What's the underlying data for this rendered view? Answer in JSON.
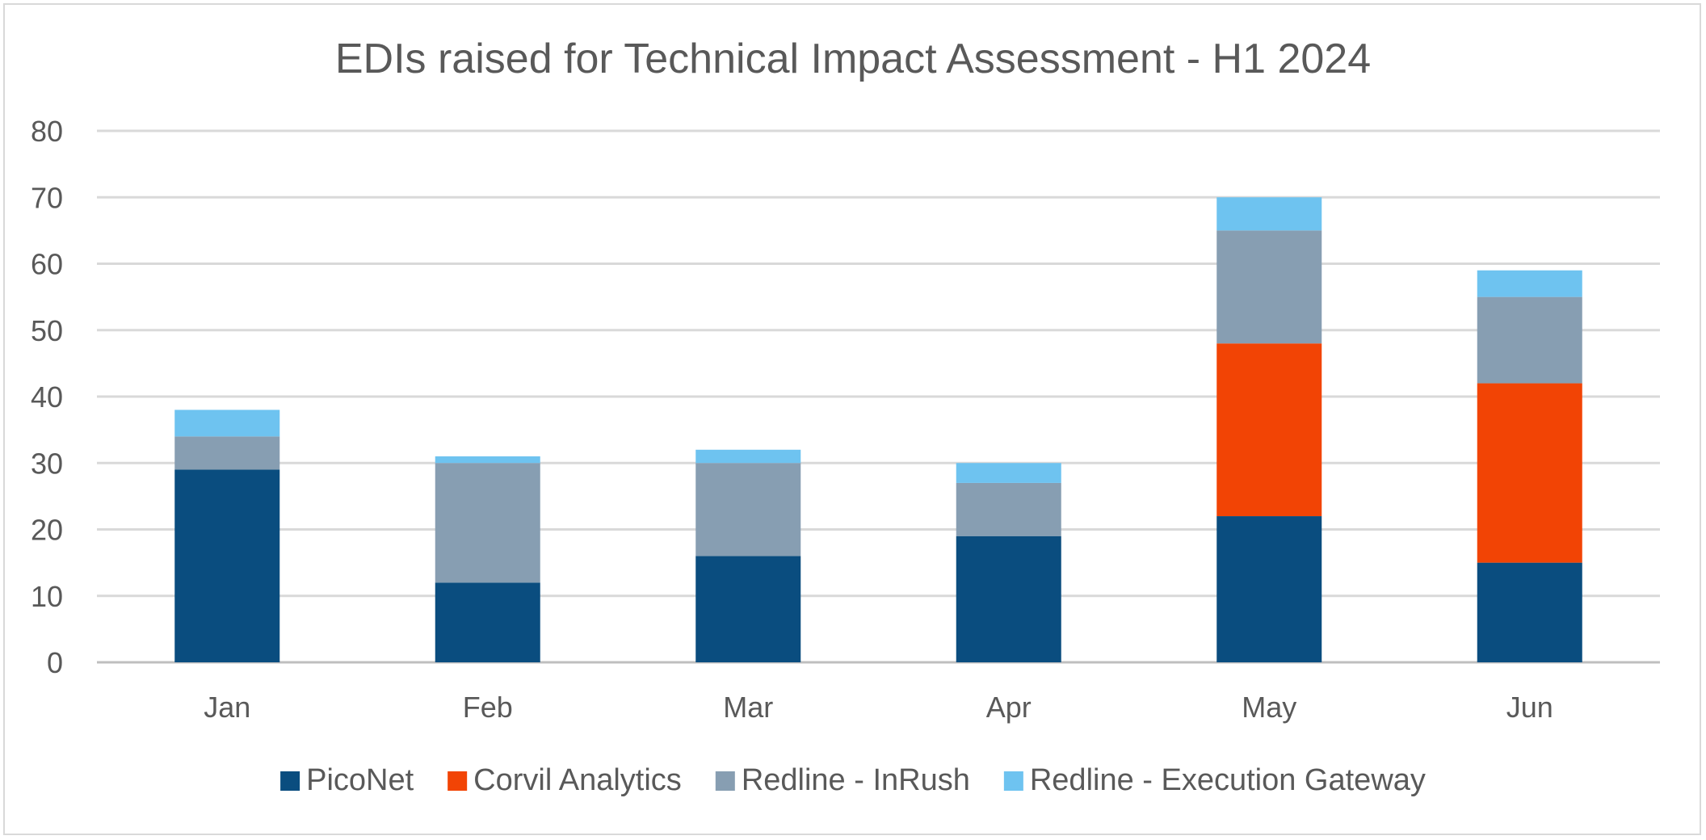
{
  "chart_data": {
    "type": "bar",
    "stacked": true,
    "title": "EDIs raised for Technical Impact Assessment - H1 2024",
    "xlabel": "",
    "ylabel": "",
    "categories": [
      "Jan",
      "Feb",
      "Mar",
      "Apr",
      "May",
      "Jun"
    ],
    "ylim": [
      0,
      80
    ],
    "yticks": [
      0,
      10,
      20,
      30,
      40,
      50,
      60,
      70,
      80
    ],
    "grid": true,
    "legend_position": "bottom",
    "series": [
      {
        "name": "PicoNet",
        "color": "#0a4d7f",
        "values": [
          29,
          12,
          16,
          19,
          22,
          15
        ]
      },
      {
        "name": "Corvil Analytics",
        "color": "#f24405",
        "values": [
          0,
          0,
          0,
          0,
          26,
          27
        ]
      },
      {
        "name": "Redline - InRush",
        "color": "#879eb2",
        "values": [
          5,
          18,
          14,
          8,
          17,
          13
        ]
      },
      {
        "name": "Redline - Execution Gateway",
        "color": "#6ec3f0",
        "values": [
          4,
          1,
          2,
          3,
          5,
          4
        ]
      }
    ]
  }
}
